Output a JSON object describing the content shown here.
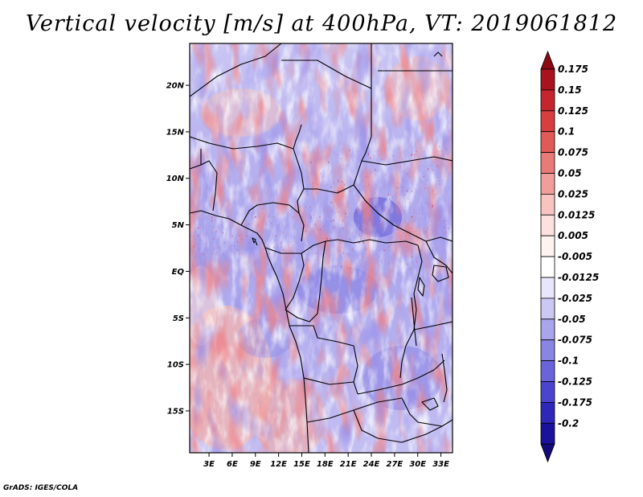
{
  "title": "Vertical velocity [m/s] at 400hPa, VT: 2019061812",
  "credit": "GrADS: IGES/COLA",
  "map": {
    "lat_labels": [
      "20N",
      "15N",
      "10N",
      "5N",
      "EQ",
      "5S",
      "10S",
      "15S"
    ],
    "lat_values": [
      20,
      15,
      10,
      5,
      0,
      -5,
      -10,
      -15
    ],
    "lon_labels": [
      "3E",
      "6E",
      "9E",
      "12E",
      "15E",
      "18E",
      "21E",
      "24E",
      "27E",
      "30E",
      "33E"
    ],
    "lon_values": [
      3,
      6,
      9,
      12,
      15,
      18,
      21,
      24,
      27,
      30,
      33
    ],
    "lat_range": [
      -19.5,
      24.5
    ],
    "lon_range": [
      0.5,
      34.5
    ]
  },
  "colorbar": {
    "labels": [
      "0.175",
      "0.15",
      "0.125",
      "0.1",
      "0.075",
      "0.05",
      "0.025",
      "0.0125",
      "0.005",
      "-0.005",
      "-0.0125",
      "-0.025",
      "-0.05",
      "-0.075",
      "-0.1",
      "-0.125",
      "-0.175",
      "-0.2"
    ],
    "colors": [
      "#a8131d",
      "#c5252e",
      "#d63e3f",
      "#e05a58",
      "#e87a77",
      "#f09e9a",
      "#f8c4c1",
      "#fde1df",
      "#fff3f2",
      "#ffffff",
      "#e8e6fb",
      "#cbc8f4",
      "#a9a4ec",
      "#8a84e3",
      "#6a63d9",
      "#4b44cc",
      "#2e27b8",
      "#1a129a"
    ],
    "top_arrow_color": "#8b0a12",
    "bottom_arrow_color": "#140a7c"
  },
  "colors": {
    "red_hi": "#d8363c",
    "red_lo": "#f4a8a6",
    "blue_hi": "#5a52d6",
    "blue_lo": "#b8b3f0"
  }
}
